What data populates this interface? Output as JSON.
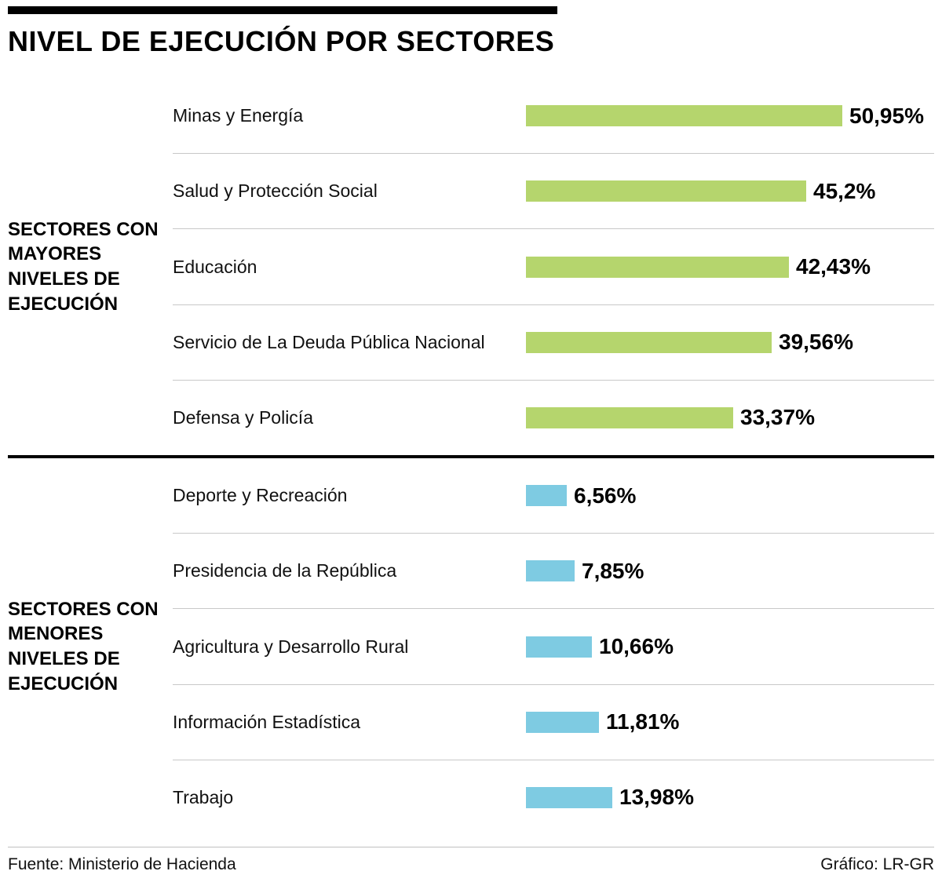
{
  "title": "NIVEL DE EJECUCIÓN POR SECTORES",
  "footer": {
    "source": "Fuente: Ministerio de Hacienda",
    "credit": "Gráfico: LR-GR"
  },
  "colors": {
    "high_group_bar": "#b5d56d",
    "low_group_bar": "#7ecbe2",
    "row_separator": "#c8c8c8",
    "group_divider": "#000000"
  },
  "chart_data": {
    "type": "bar",
    "orientation": "horizontal",
    "value_suffix": "%",
    "xlim": [
      0,
      53
    ],
    "grid": false,
    "legend": false,
    "groups": [
      {
        "label": "SECTORES CON MAYORES NIVELES DE EJECUCIÓN",
        "color": "#b5d56d",
        "categories": [
          "Minas y Energía",
          "Salud y Protección Social",
          "Educación",
          "Servicio de La Deuda Pública Nacional",
          "Defensa y Policía"
        ],
        "values": [
          50.95,
          45.2,
          42.43,
          39.56,
          33.37
        ],
        "value_labels": [
          "50,95%",
          "45,2%",
          "42,43%",
          "39,56%",
          "33,37%"
        ]
      },
      {
        "label": "SECTORES CON MENORES NIVELES DE EJECUCIÓN",
        "color": "#7ecbe2",
        "categories": [
          "Deporte y Recreación",
          "Presidencia de la República",
          "Agricultura y Desarrollo Rural",
          "Información Estadística",
          "Trabajo"
        ],
        "values": [
          6.56,
          7.85,
          10.66,
          11.81,
          13.98
        ],
        "value_labels": [
          "6,56%",
          "7,85%",
          "10,66%",
          "11,81%",
          "13,98%"
        ]
      }
    ]
  }
}
